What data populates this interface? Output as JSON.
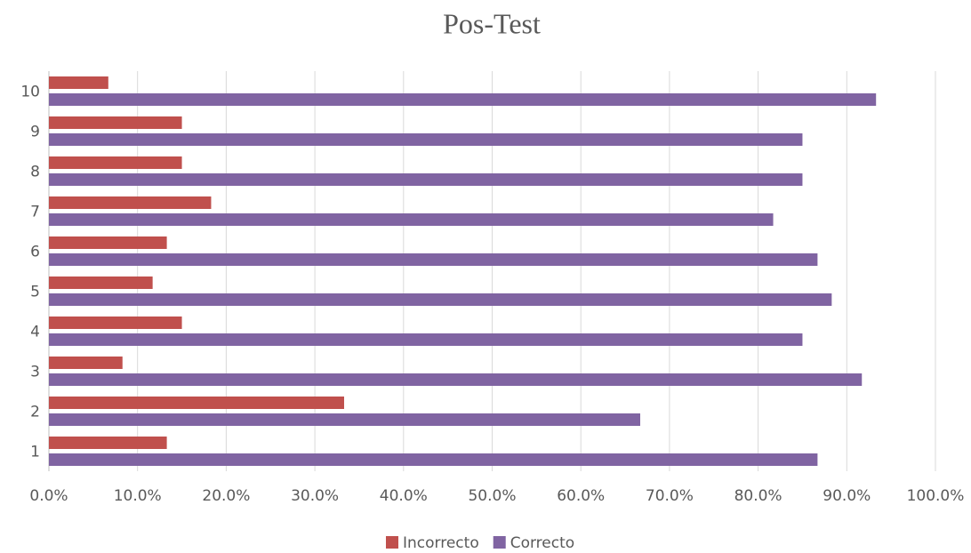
{
  "chart_data": {
    "type": "hbar",
    "title": "Pos-Test",
    "categories": [
      "1",
      "2",
      "3",
      "4",
      "5",
      "6",
      "7",
      "8",
      "9",
      "10"
    ],
    "series": [
      {
        "name": "Incorrecto",
        "color": "#c0504d",
        "values": [
          13.3,
          33.3,
          8.3,
          15,
          11.7,
          13.3,
          18.3,
          15,
          15,
          6.7
        ]
      },
      {
        "name": "Correcto",
        "color": "#8064a2",
        "values": [
          86.7,
          66.7,
          91.7,
          85,
          88.3,
          86.7,
          81.7,
          85,
          85,
          93.3
        ]
      }
    ],
    "xlim": [
      0,
      100
    ],
    "xticks": [
      {
        "value": 0,
        "label": "0.0%"
      },
      {
        "value": 10,
        "label": "10.0%"
      },
      {
        "value": 20,
        "label": "20.0%"
      },
      {
        "value": 30,
        "label": "30.0%"
      },
      {
        "value": 40,
        "label": "40.0%"
      },
      {
        "value": 50,
        "label": "50.0%"
      },
      {
        "value": 60,
        "label": "60.0%"
      },
      {
        "value": 70,
        "label": "70.0%"
      },
      {
        "value": 80,
        "label": "80.0%"
      },
      {
        "value": 90,
        "label": "90.0%"
      },
      {
        "value": 100,
        "label": "100.0%"
      }
    ],
    "grid": true,
    "legend": "bottom"
  }
}
